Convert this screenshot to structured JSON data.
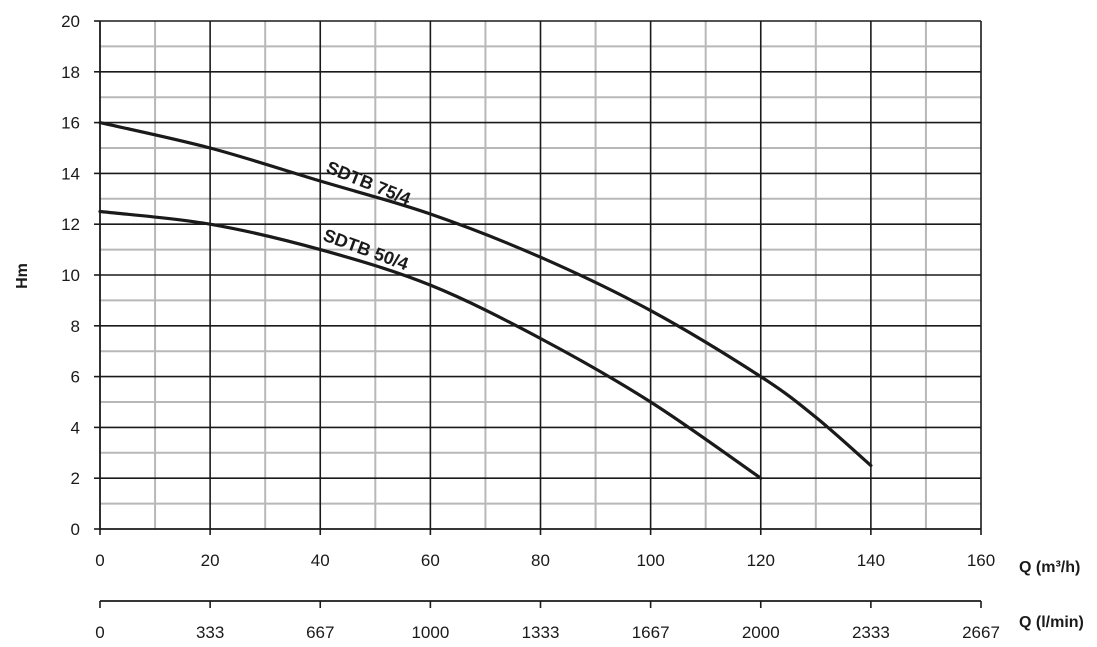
{
  "chart_data": {
    "type": "line",
    "title": "",
    "ylabel": "Hm",
    "xlabel": "Q (m³/h)",
    "xlabel_secondary": "Q (l/min)",
    "xlim": [
      0,
      160
    ],
    "ylim": [
      0,
      20
    ],
    "x_ticks": [
      "0",
      "20",
      "40",
      "60",
      "80",
      "100",
      "120",
      "140",
      "160"
    ],
    "x_ticks_secondary": [
      "0",
      "333",
      "667",
      "1000",
      "1333",
      "1667",
      "2000",
      "2333",
      "2667"
    ],
    "y_ticks": [
      "0",
      "2",
      "4",
      "6",
      "8",
      "10",
      "12",
      "14",
      "16",
      "18",
      "20"
    ],
    "grid": true,
    "series": [
      {
        "name": "SDTB 75/4",
        "x": [
          0,
          20,
          40,
          60,
          80,
          100,
          120,
          130,
          140
        ],
        "y": [
          16,
          15,
          13.7,
          12.4,
          10.7,
          8.6,
          6,
          4.4,
          2.5
        ]
      },
      {
        "name": "SDTB 50/4",
        "x": [
          0,
          20,
          40,
          60,
          80,
          100,
          120
        ],
        "y": [
          12.5,
          12,
          11,
          9.6,
          7.5,
          5,
          2
        ]
      }
    ]
  }
}
